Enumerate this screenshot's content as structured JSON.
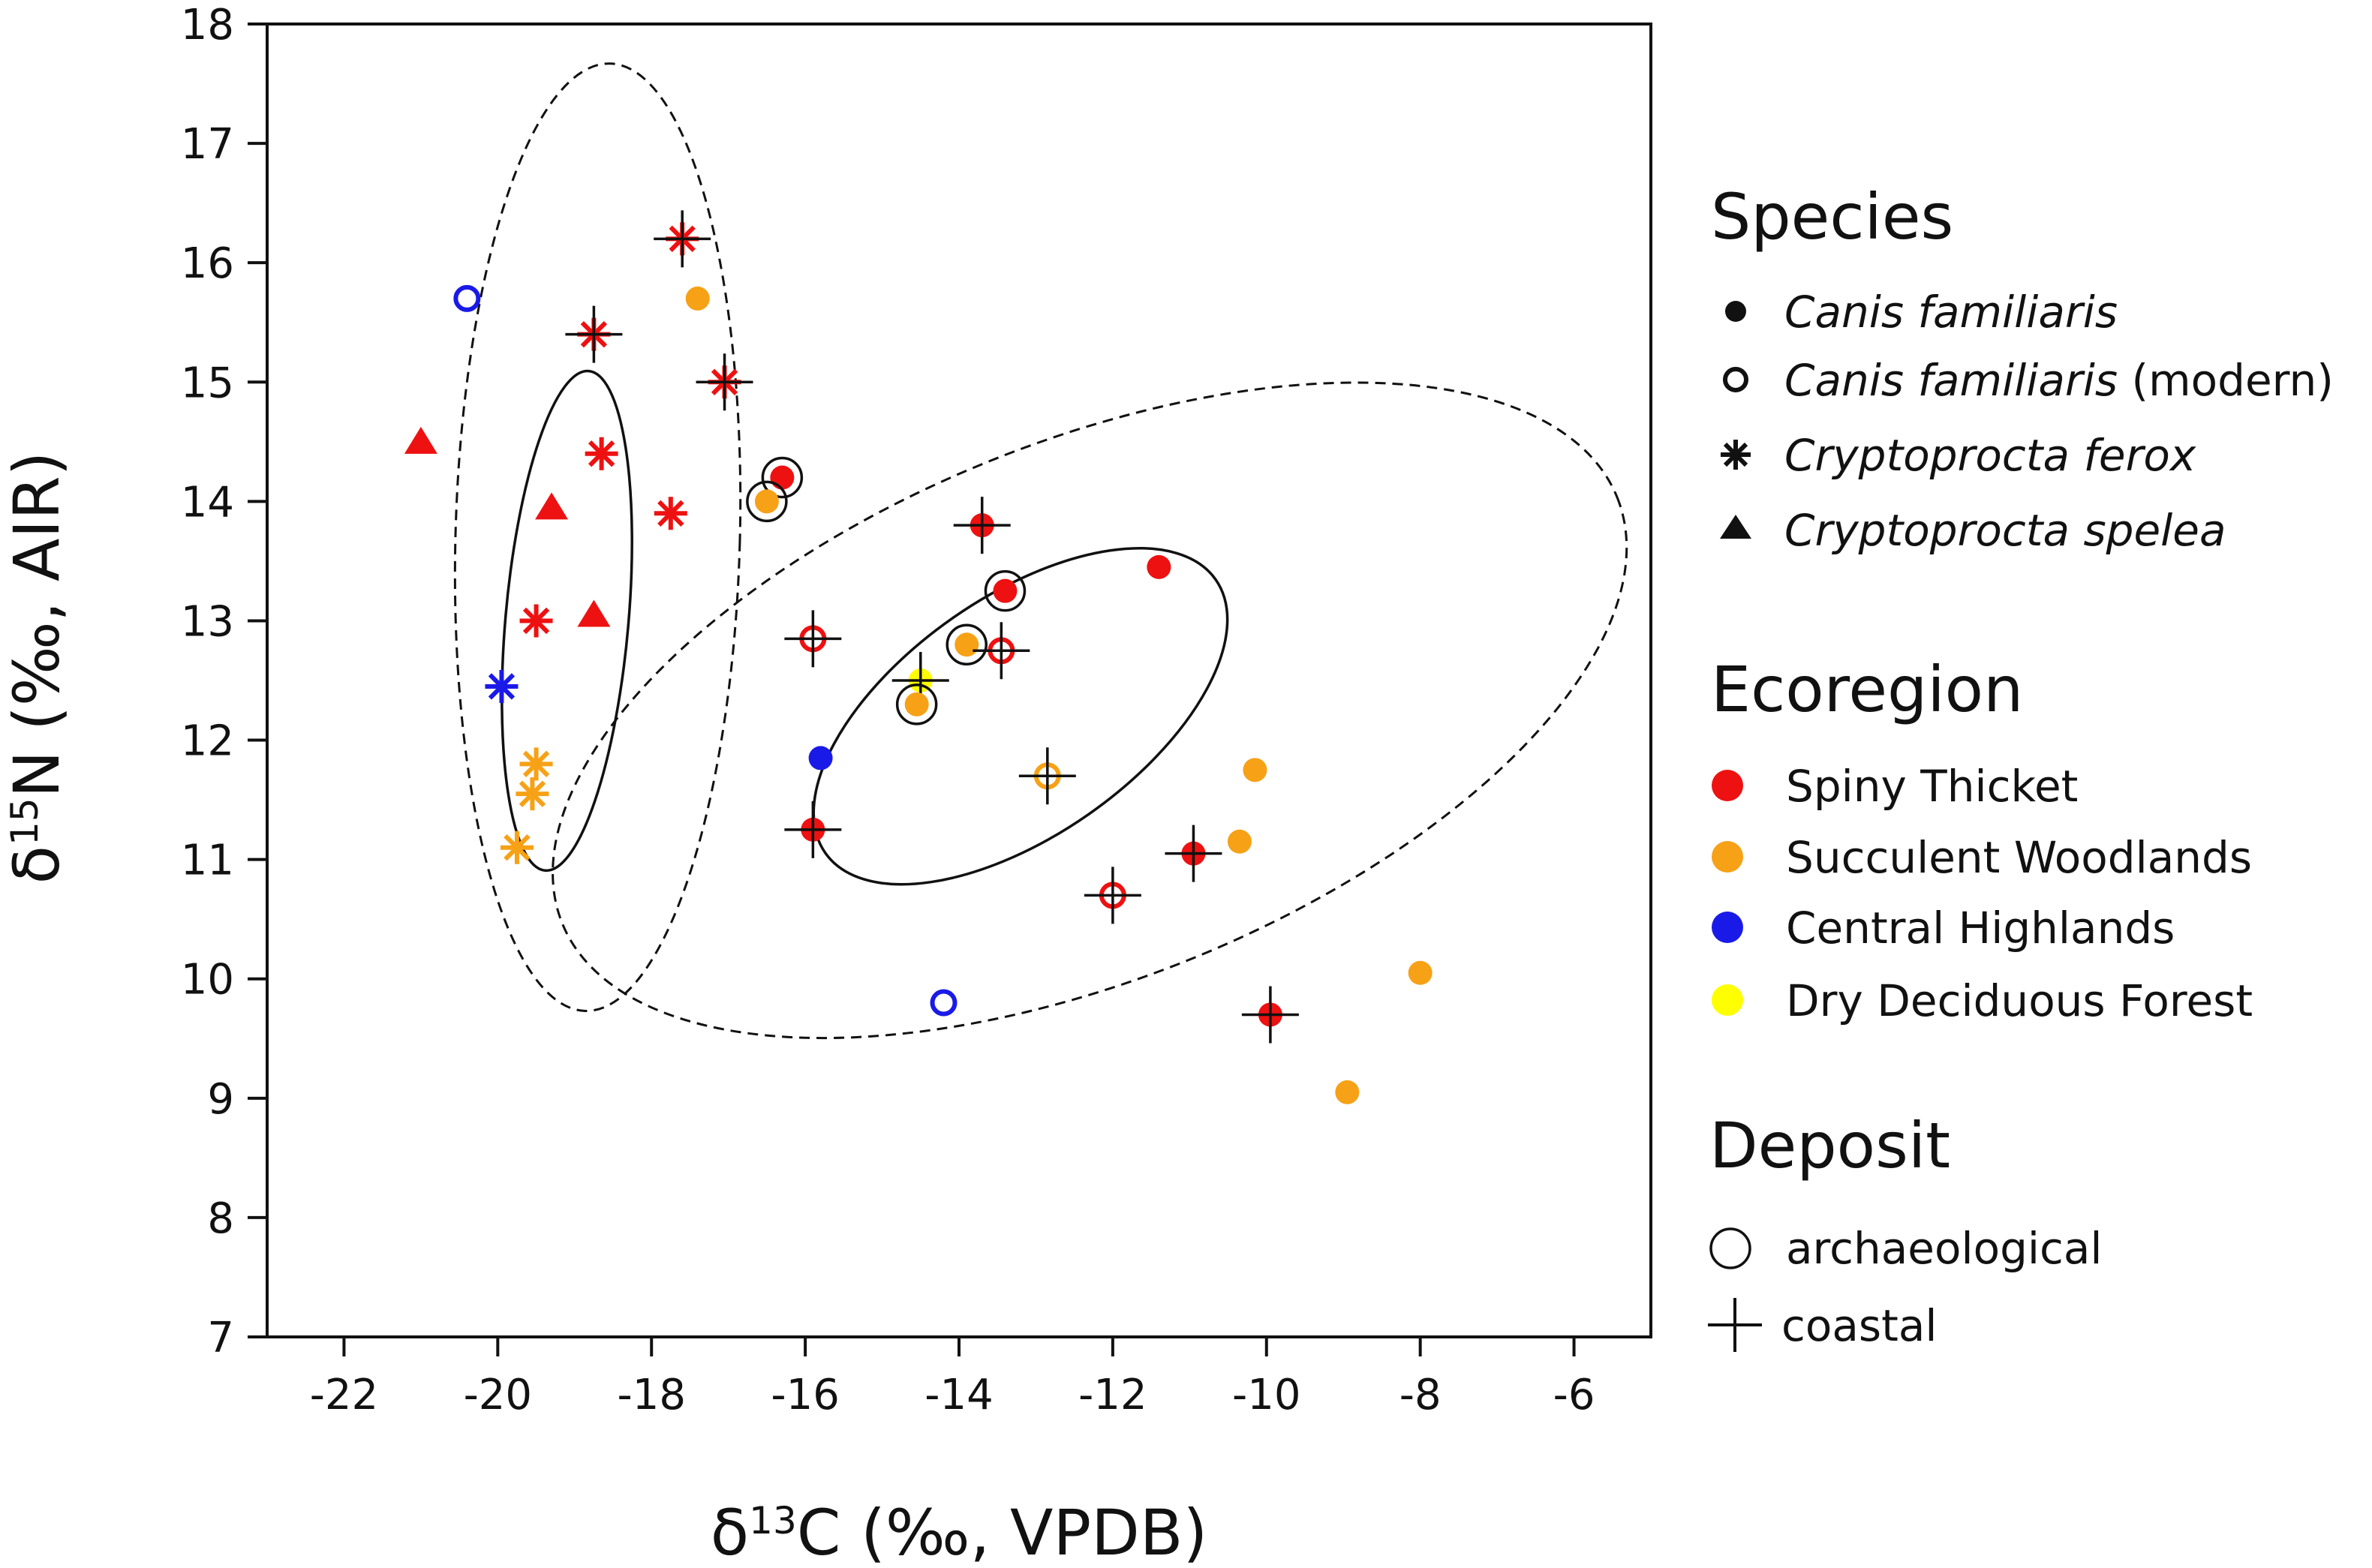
{
  "chart_data": {
    "type": "scatter",
    "xlabel_parts": {
      "symbol": "δ",
      "iso": "13",
      "rest": "C (‰, VPDB)"
    },
    "ylabel_parts": {
      "symbol": "δ",
      "iso": "15",
      "rest": "N (‰, AIR)"
    },
    "xlim": [
      -23,
      -5
    ],
    "ylim": [
      7,
      18
    ],
    "xticks": [
      -22,
      -20,
      -18,
      -16,
      -14,
      -12,
      -10,
      -8,
      -6
    ],
    "yticks": [
      7,
      8,
      9,
      10,
      11,
      12,
      13,
      14,
      15,
      16,
      17,
      18
    ],
    "grid": false,
    "ecoregion_colors": {
      "Spiny Thicket": "#ee1111",
      "Succulent Woodlands": "#f7a116",
      "Central Highlands": "#1a1ae8",
      "Dry Deciduous Forest": "#ffff00"
    },
    "points": [
      {
        "x": -20.4,
        "y": 15.7,
        "species": "dog-modern",
        "eco": "Central Highlands",
        "arch": false,
        "coastal": false
      },
      {
        "x": -21.0,
        "y": 14.5,
        "species": "spelea",
        "eco": "Spiny Thicket",
        "arch": false,
        "coastal": false
      },
      {
        "x": -19.3,
        "y": 13.95,
        "species": "spelea",
        "eco": "Spiny Thicket",
        "arch": false,
        "coastal": false
      },
      {
        "x": -18.75,
        "y": 13.05,
        "species": "spelea",
        "eco": "Spiny Thicket",
        "arch": false,
        "coastal": false
      },
      {
        "x": -17.6,
        "y": 16.2,
        "species": "ferox",
        "eco": "Spiny Thicket",
        "arch": false,
        "coastal": true
      },
      {
        "x": -18.75,
        "y": 15.4,
        "species": "ferox",
        "eco": "Spiny Thicket",
        "arch": false,
        "coastal": true
      },
      {
        "x": -17.05,
        "y": 15.0,
        "species": "ferox",
        "eco": "Spiny Thicket",
        "arch": false,
        "coastal": true
      },
      {
        "x": -18.65,
        "y": 14.4,
        "species": "ferox",
        "eco": "Spiny Thicket",
        "arch": false,
        "coastal": false
      },
      {
        "x": -17.75,
        "y": 13.9,
        "species": "ferox",
        "eco": "Spiny Thicket",
        "arch": false,
        "coastal": false
      },
      {
        "x": -19.5,
        "y": 13.0,
        "species": "ferox",
        "eco": "Spiny Thicket",
        "arch": false,
        "coastal": false
      },
      {
        "x": -19.95,
        "y": 12.45,
        "species": "ferox",
        "eco": "Central Highlands",
        "arch": false,
        "coastal": false
      },
      {
        "x": -19.5,
        "y": 11.8,
        "species": "ferox",
        "eco": "Succulent Woodlands",
        "arch": false,
        "coastal": false
      },
      {
        "x": -19.55,
        "y": 11.55,
        "species": "ferox",
        "eco": "Succulent Woodlands",
        "arch": false,
        "coastal": false
      },
      {
        "x": -19.75,
        "y": 11.1,
        "species": "ferox",
        "eco": "Succulent Woodlands",
        "arch": false,
        "coastal": false
      },
      {
        "x": -17.4,
        "y": 15.7,
        "species": "dog",
        "eco": "Succulent Woodlands",
        "arch": false,
        "coastal": false
      },
      {
        "x": -16.3,
        "y": 14.2,
        "species": "dog",
        "eco": "Spiny Thicket",
        "arch": true,
        "coastal": false
      },
      {
        "x": -16.5,
        "y": 14.0,
        "species": "dog",
        "eco": "Succulent Woodlands",
        "arch": true,
        "coastal": false
      },
      {
        "x": -15.9,
        "y": 12.85,
        "species": "dog-modern",
        "eco": "Spiny Thicket",
        "arch": false,
        "coastal": true
      },
      {
        "x": -15.8,
        "y": 11.85,
        "species": "dog",
        "eco": "Central Highlands",
        "arch": false,
        "coastal": false
      },
      {
        "x": -15.9,
        "y": 11.25,
        "species": "dog",
        "eco": "Spiny Thicket",
        "arch": false,
        "coastal": true
      },
      {
        "x": -14.5,
        "y": 12.5,
        "species": "dog",
        "eco": "Dry Deciduous Forest",
        "arch": false,
        "coastal": true
      },
      {
        "x": -14.55,
        "y": 12.3,
        "species": "dog",
        "eco": "Succulent Woodlands",
        "arch": true,
        "coastal": false
      },
      {
        "x": -14.2,
        "y": 9.8,
        "species": "dog-modern",
        "eco": "Central Highlands",
        "arch": false,
        "coastal": false
      },
      {
        "x": -13.9,
        "y": 12.8,
        "species": "dog",
        "eco": "Succulent Woodlands",
        "arch": true,
        "coastal": false
      },
      {
        "x": -13.7,
        "y": 13.8,
        "species": "dog",
        "eco": "Spiny Thicket",
        "arch": false,
        "coastal": true
      },
      {
        "x": -13.4,
        "y": 13.25,
        "species": "dog",
        "eco": "Spiny Thicket",
        "arch": true,
        "coastal": false
      },
      {
        "x": -13.45,
        "y": 12.75,
        "species": "dog-modern",
        "eco": "Spiny Thicket",
        "arch": false,
        "coastal": true
      },
      {
        "x": -12.85,
        "y": 11.7,
        "species": "dog-modern",
        "eco": "Succulent Woodlands",
        "arch": false,
        "coastal": true
      },
      {
        "x": -12.0,
        "y": 10.7,
        "species": "dog-modern",
        "eco": "Spiny Thicket",
        "arch": false,
        "coastal": true
      },
      {
        "x": -11.4,
        "y": 13.45,
        "species": "dog",
        "eco": "Spiny Thicket",
        "arch": false,
        "coastal": false
      },
      {
        "x": -10.95,
        "y": 11.05,
        "species": "dog",
        "eco": "Spiny Thicket",
        "arch": false,
        "coastal": true
      },
      {
        "x": -10.35,
        "y": 11.15,
        "species": "dog",
        "eco": "Succulent Woodlands",
        "arch": false,
        "coastal": false
      },
      {
        "x": -10.15,
        "y": 11.75,
        "species": "dog",
        "eco": "Succulent Woodlands",
        "arch": false,
        "coastal": false
      },
      {
        "x": -9.95,
        "y": 9.7,
        "species": "dog",
        "eco": "Spiny Thicket",
        "arch": false,
        "coastal": true
      },
      {
        "x": -8.95,
        "y": 9.05,
        "species": "dog",
        "eco": "Succulent Woodlands",
        "arch": false,
        "coastal": false
      },
      {
        "x": -8.0,
        "y": 10.05,
        "species": "dog",
        "eco": "Succulent Woodlands",
        "arch": false,
        "coastal": false
      }
    ],
    "ellipses": [
      {
        "name": "ferox-dashed",
        "cx": -18.7,
        "cy": 13.7,
        "rx": 1.85,
        "ry": 3.97,
        "angle_deg": 1.5,
        "style": "dashed"
      },
      {
        "name": "dog-dashed",
        "cx": -12.3,
        "cy": 12.25,
        "rx": 7.4,
        "ry": 2.25,
        "angle_deg": -22,
        "style": "dashed"
      },
      {
        "name": "ferox-solid",
        "cx": -19.1,
        "cy": 13.0,
        "rx": 0.8,
        "ry": 2.1,
        "angle_deg": 5,
        "style": "solid"
      },
      {
        "name": "dog-solid",
        "cx": -13.2,
        "cy": 12.2,
        "rx": 3.1,
        "ry": 1.0,
        "angle_deg": -35,
        "style": "solid"
      }
    ]
  },
  "legend": {
    "species_title": "Species",
    "species": [
      {
        "name": "Canis familiaris",
        "suffix": "",
        "marker": "filled-circle"
      },
      {
        "name": "Canis familiaris",
        "suffix": " (modern)",
        "marker": "open-circle"
      },
      {
        "name": "Cryptoprocta ferox",
        "suffix": "",
        "marker": "asterisk"
      },
      {
        "name": "Cryptoprocta spelea",
        "suffix": "",
        "marker": "triangle"
      }
    ],
    "ecoregion_title": "Ecoregion",
    "ecoregions": [
      {
        "name": "Spiny Thicket",
        "color": "#ee1111"
      },
      {
        "name": "Succulent Woodlands",
        "color": "#f7a116"
      },
      {
        "name": "Central Highlands",
        "color": "#1a1ae8"
      },
      {
        "name": "Dry Deciduous Forest",
        "color": "#ffff00"
      }
    ],
    "deposit_title": "Deposit",
    "deposits": [
      {
        "name": "archaeological",
        "marker": "open-circle"
      },
      {
        "name": "coastal",
        "marker": "cross"
      }
    ]
  }
}
